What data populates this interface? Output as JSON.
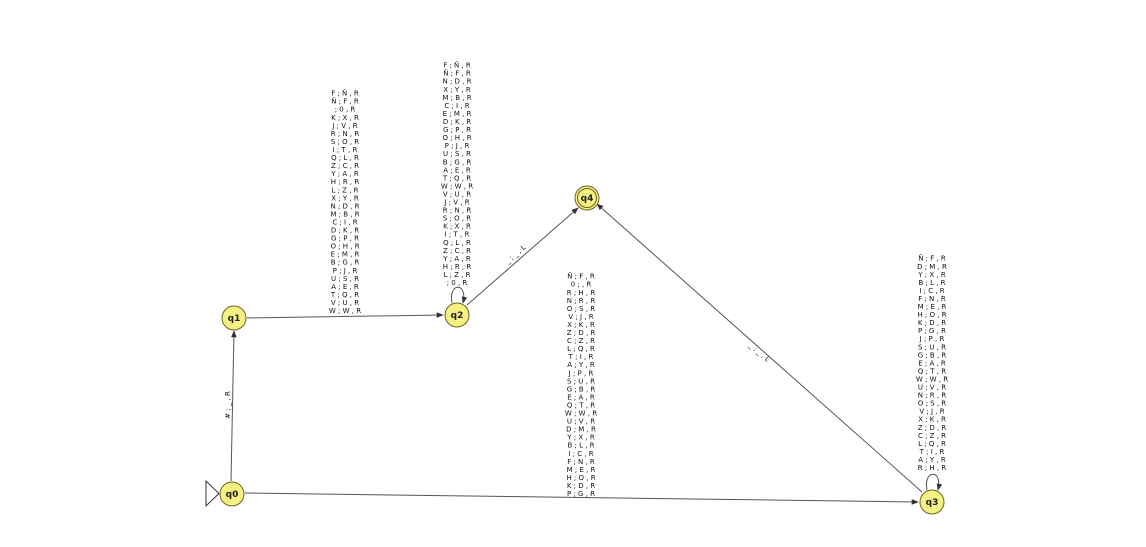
{
  "diagram": {
    "type": "finite-state-machine",
    "states": {
      "q0": "q0",
      "q1": "q1",
      "q2": "q2",
      "q3": "q3",
      "q4": "q4"
    },
    "initial_state": "q0",
    "final_states": [
      "q4"
    ],
    "colors": {
      "state_fill": "#f5f083",
      "state_stroke": "#6b6520",
      "edge": "#555555"
    },
    "transitions": {
      "q0_q1": "# ; _ , R",
      "q2_q4": "_ ; _ , L",
      "q3_q4": "_ ; _ , L",
      "q1_q2": [
        "F ; Ñ , R",
        "Ñ ; F , R",
        " ; 0 , R",
        "K ; X , R",
        "J ; V , R",
        "R ; N , R",
        "S ; O , R",
        "I ; T , R",
        "Q ; L , R",
        "Z ; C , R",
        "Y ; A , R",
        "H ; R , R",
        "L ; Z , R",
        "X ; Y , R",
        "N ; D , R",
        "M ; B , R",
        "C ; I , R",
        "D ; K , R",
        "G ; P , R",
        "O ; H , R",
        "E ; M , R",
        "B ; G , R",
        "P ; J , R",
        "U ; S , R",
        "A ; E , R",
        "T ; Q , R",
        "V ; U , R",
        "W ; W , R"
      ],
      "q2_loop": [
        "F ; Ñ , R",
        "Ñ ; F , R",
        "N ; D , R",
        "X ; Y , R",
        "M ; B , R",
        "C ; I , R",
        "E ; M , R",
        "D ; K , R",
        "G ; P , R",
        "O ; H , R",
        "P ; J , R",
        "U ; S , R",
        "B ; G , R",
        "A ; E , R",
        "T ; Q , R",
        "W ; W , R",
        "V ; U , R",
        "J ; V , R",
        "R ; N , R",
        "S ; O , R",
        "K ; X , R",
        "I ; T , R",
        "Q ; L , R",
        "Z ; C , R",
        "Y ; A , R",
        "H ; R , R",
        "L ; Z , R",
        " ; 0 , R"
      ],
      "q0_q3": [
        "Ñ ; F , R",
        "0 ;  , R",
        "R ; H , R",
        "N ; R , R",
        "O ; S , R",
        "V ; J , R",
        "X ; K , R",
        "Z ; D , R",
        "C ; Z , R",
        "L ; Q , R",
        "T ; I , R",
        "A ; Y , R",
        "J ; P , R",
        "S ; U , R",
        "G ; B , R",
        "E ; A , R",
        "Q ; T , R",
        "W ; W , R",
        "U ; V , R",
        "D ; M , R",
        "Y ; X , R",
        "B ; L , R",
        "I ; C , R",
        "F ; N , R",
        "M ; E , R",
        "H ; O , R",
        "K ; D , R",
        "P ; G , R"
      ],
      "q3_loop": [
        "Ñ ; F , R",
        "D ; M , R",
        "Y ; X , R",
        "B ; L , R",
        "I ; C , R",
        "F ; N , R",
        "M ; E , R",
        "H ; O , R",
        "K ; D , R",
        "P ; G , R",
        "J ; P , R",
        "S ; U , R",
        "G ; B , R",
        "E ; A , R",
        "Q ; T , R",
        "W ; W , R",
        "U ; V , R",
        "N ; R , R",
        "O ; S , R",
        "V ; J , R",
        "X ; K , R",
        "Z ; D , R",
        "C ; Z , R",
        "L ; Q , R",
        "T ; I , R",
        "A ; Y , R",
        "R ; H , R"
      ]
    }
  }
}
